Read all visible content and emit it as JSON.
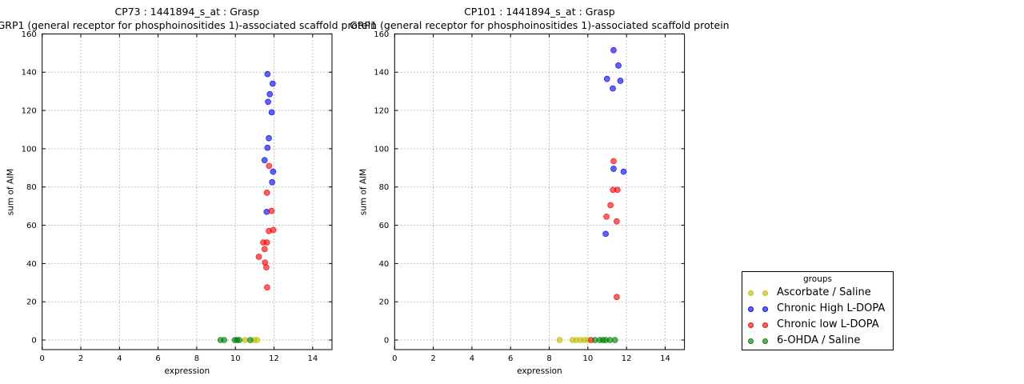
{
  "figure": {
    "background": "#ffffff"
  },
  "legend": {
    "title": "groups",
    "items": [
      {
        "label": "Ascorbate / Saline",
        "color": "#bfbf00"
      },
      {
        "label": "Chronic High L-DOPA",
        "color": "#0000ff"
      },
      {
        "label": "Chronic low L-DOPA",
        "color": "#ff0000"
      },
      {
        "label": "6-OHDA / Saline",
        "color": "#008000"
      }
    ]
  },
  "chart_data": [
    {
      "type": "scatter",
      "title": "CP73 : 1441894_s_at : Grasp",
      "subtitle": "GRP1 (general receptor for phosphoinositides 1)-associated scaffold protein",
      "xlabel": "expression",
      "ylabel": "sum of AIM",
      "xlim": [
        0,
        15
      ],
      "ylim": [
        -5,
        160
      ],
      "xticks": [
        0,
        2,
        4,
        6,
        8,
        10,
        12,
        14
      ],
      "yticks": [
        0,
        20,
        40,
        60,
        80,
        100,
        120,
        140,
        160
      ],
      "grid": true,
      "series": [
        {
          "name": "Ascorbate / Saline",
          "color": "#bfbf00",
          "points": [
            [
              10.5,
              0
            ],
            [
              10.98,
              0
            ],
            [
              11.12,
              0
            ]
          ]
        },
        {
          "name": "Chronic High L-DOPA",
          "color": "#0000ff",
          "points": [
            [
              11.66,
              139
            ],
            [
              11.93,
              134
            ],
            [
              11.78,
              128.5
            ],
            [
              11.69,
              124.5
            ],
            [
              11.88,
              119
            ],
            [
              11.73,
              105.5
            ],
            [
              11.66,
              100.5
            ],
            [
              11.51,
              94
            ],
            [
              11.95,
              88
            ],
            [
              11.9,
              82.5
            ],
            [
              11.62,
              67
            ]
          ]
        },
        {
          "name": "Chronic low L-DOPA",
          "color": "#ff0000",
          "points": [
            [
              11.74,
              91
            ],
            [
              11.63,
              77
            ],
            [
              11.87,
              67.5
            ],
            [
              11.73,
              57
            ],
            [
              11.96,
              57.5
            ],
            [
              11.44,
              51
            ],
            [
              11.63,
              51
            ],
            [
              11.51,
              47.5
            ],
            [
              11.21,
              43.5
            ],
            [
              11.53,
              40.5
            ],
            [
              11.6,
              38
            ],
            [
              11.64,
              27.5
            ]
          ]
        },
        {
          "name": "6-OHDA / Saline",
          "color": "#008000",
          "points": [
            [
              9.23,
              0
            ],
            [
              9.42,
              0
            ],
            [
              9.97,
              0
            ],
            [
              10.08,
              0
            ],
            [
              10.2,
              0
            ],
            [
              10.77,
              0
            ]
          ]
        }
      ]
    },
    {
      "type": "scatter",
      "title": "CP101 : 1441894_s_at : Grasp",
      "subtitle": "GRP1 (general receptor for phosphoinositides 1)-associated scaffold protein",
      "xlabel": "expression",
      "ylabel": "sum of AIM",
      "xlim": [
        0,
        15
      ],
      "ylim": [
        -5,
        160
      ],
      "xticks": [
        0,
        2,
        4,
        6,
        8,
        10,
        12,
        14
      ],
      "yticks": [
        0,
        20,
        40,
        60,
        80,
        100,
        120,
        140,
        160
      ],
      "grid": true,
      "series": [
        {
          "name": "Ascorbate / Saline",
          "color": "#bfbf00",
          "points": [
            [
              8.54,
              0
            ],
            [
              9.21,
              0
            ],
            [
              9.4,
              0
            ],
            [
              9.61,
              0
            ],
            [
              9.81,
              0
            ],
            [
              9.99,
              0
            ]
          ]
        },
        {
          "name": "Chronic High L-DOPA",
          "color": "#0000ff",
          "points": [
            [
              11.33,
              151.5
            ],
            [
              11.58,
              143.5
            ],
            [
              10.99,
              136.5
            ],
            [
              11.68,
              135.5
            ],
            [
              11.29,
              131.5
            ],
            [
              11.33,
              89.5
            ],
            [
              11.85,
              88
            ],
            [
              10.92,
              55.5
            ]
          ]
        },
        {
          "name": "Chronic low L-DOPA",
          "color": "#ff0000",
          "points": [
            [
              11.33,
              93.5
            ],
            [
              11.3,
              78.5
            ],
            [
              11.53,
              78.5
            ],
            [
              11.17,
              70.5
            ],
            [
              10.96,
              64.5
            ],
            [
              11.49,
              62
            ],
            [
              11.49,
              22.5
            ],
            [
              10.17,
              0
            ]
          ]
        },
        {
          "name": "6-OHDA / Saline",
          "color": "#008000",
          "points": [
            [
              10.37,
              0
            ],
            [
              10.62,
              0
            ],
            [
              10.78,
              0
            ],
            [
              10.92,
              0
            ],
            [
              11.14,
              0
            ],
            [
              11.4,
              0
            ]
          ]
        }
      ]
    }
  ]
}
